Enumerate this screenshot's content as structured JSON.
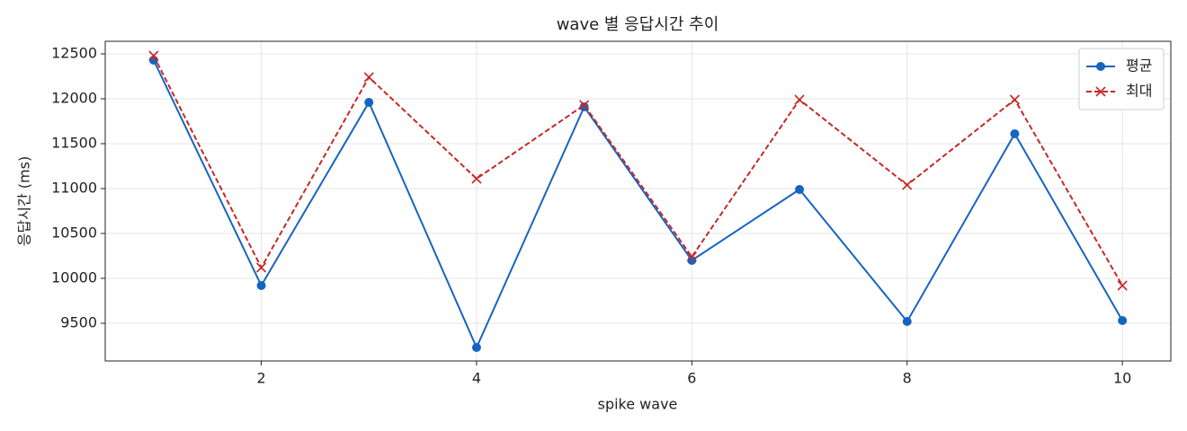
{
  "chart_data": {
    "type": "line",
    "title": "wave 별 응답시간 추이",
    "x_label": "spike wave",
    "y_label": "응답시간 (ms)",
    "x": [
      1,
      2,
      3,
      4,
      5,
      6,
      7,
      8,
      9,
      10
    ],
    "series": [
      {
        "name": "평균",
        "color": "#1565c0",
        "line_style": "solid",
        "marker": "circle",
        "values": [
          12430,
          9920,
          11960,
          9230,
          11910,
          10200,
          10990,
          9520,
          11610,
          9530
        ]
      },
      {
        "name": "최대",
        "color": "#c62828",
        "line_style": "dashed",
        "marker": "x",
        "values": [
          12480,
          10120,
          12240,
          11110,
          11930,
          10240,
          11990,
          11040,
          11990,
          9920
        ]
      }
    ],
    "xlim": [
      0.55,
      10.45
    ],
    "xticks": [
      2,
      4,
      6,
      8,
      10
    ],
    "ylim": [
      9080,
      12640
    ],
    "yticks": [
      9500,
      10000,
      10500,
      11000,
      11500,
      12000,
      12500
    ],
    "grid": true,
    "legend": "upper right"
  }
}
